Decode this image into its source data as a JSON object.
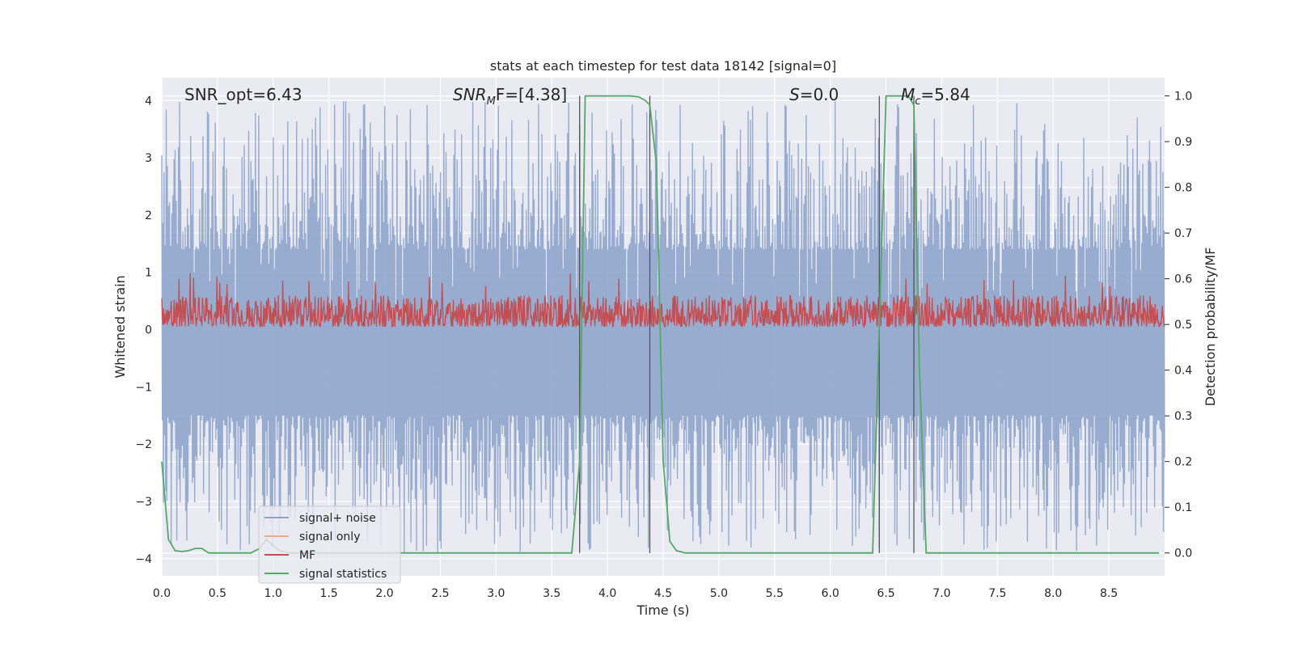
{
  "chart_data": {
    "type": "line",
    "title": "stats at each timestep for test data 18142 [signal=0]",
    "xlabel": "Time (s)",
    "ylabel_left": "Whitened strain",
    "ylabel_right": "Detection probability/MF",
    "xlim": [
      0.0,
      9.0
    ],
    "ylim_left": [
      -4.3,
      4.4
    ],
    "ylim_right": [
      -0.05,
      1.04
    ],
    "grid": true,
    "xticks": [
      0.0,
      0.5,
      1.0,
      1.5,
      2.0,
      2.5,
      3.0,
      3.5,
      4.0,
      4.5,
      5.0,
      5.5,
      6.0,
      6.5,
      7.0,
      7.5,
      8.0,
      8.5
    ],
    "xtick_labels": [
      "0.0",
      "0.5",
      "1.0",
      "1.5",
      "2.0",
      "2.5",
      "3.0",
      "3.5",
      "4.0",
      "4.5",
      "5.0",
      "5.5",
      "6.0",
      "6.5",
      "7.0",
      "7.5",
      "8.0",
      "8.5"
    ],
    "yticks_left": [
      4,
      3,
      2,
      1,
      0,
      -1,
      -2,
      -3,
      -4
    ],
    "ytick_labels_left": [
      "4",
      "3",
      "2",
      "1",
      "0",
      "−1",
      "−2",
      "−3",
      "−4"
    ],
    "yticks_right": [
      1.0,
      0.9,
      0.8,
      0.7,
      0.6,
      0.5,
      0.4,
      0.3,
      0.2,
      0.1,
      0.0
    ],
    "ytick_labels_right": [
      "1.0",
      "0.9",
      "0.8",
      "0.7",
      "0.6",
      "0.5",
      "0.4",
      "0.3",
      "0.2",
      "0.1",
      "0.0"
    ],
    "annotations": [
      {
        "text": "SNR_opt=6.43",
        "x": 0.2
      },
      {
        "text": "SNR_MF=[4.38]",
        "x": 2.6,
        "base": "SNR",
        "sub": "M",
        "tail": "F=[4.38]"
      },
      {
        "text": "S=0.0",
        "x": 5.6,
        "base": "S",
        "tail": "=0.0"
      },
      {
        "text": "M_c=5.84",
        "x": 6.6,
        "base": "M",
        "sub": "c",
        "tail": "=5.84"
      }
    ],
    "detection_markers": [
      3.75,
      4.38,
      6.44,
      6.75
    ],
    "series": [
      {
        "name": "signal+ noise",
        "color": "#8fa5cc",
        "axis": "left",
        "x_range": [
          0.0,
          9.0
        ],
        "n_points": 1800,
        "envelope_min": -3.9,
        "envelope_max": 4.0
      },
      {
        "name": "signal only",
        "color": "#eeaa90",
        "axis": "left",
        "values": []
      },
      {
        "name": "MF",
        "color": "#c44e52",
        "axis": "left",
        "x_range": [
          0.0,
          9.0
        ],
        "n_points": 1800,
        "envelope_min": 0.0,
        "envelope_max": 1.0
      },
      {
        "name": "signal statistics",
        "color": "#55a868",
        "axis": "right",
        "x": [
          0.0,
          0.06,
          0.12,
          0.18,
          0.24,
          0.3,
          0.36,
          0.42,
          0.5,
          0.6,
          0.7,
          0.8,
          0.88,
          0.94,
          1.0,
          1.06,
          1.15,
          1.3,
          1.5,
          1.8,
          2.2,
          2.8,
          3.3,
          3.68,
          3.75,
          3.8,
          3.9,
          4.0,
          4.1,
          4.2,
          4.28,
          4.34,
          4.38,
          4.44,
          4.5,
          4.56,
          4.62,
          4.7,
          4.8,
          5.2,
          6.0,
          6.38,
          6.44,
          6.5,
          6.6,
          6.7,
          6.75,
          6.8,
          6.86,
          7.2,
          8.0,
          8.95
        ],
        "y": [
          0.2,
          0.03,
          0.005,
          0.003,
          0.005,
          0.01,
          0.01,
          0.0,
          0.0,
          0.0,
          0.0,
          0.0,
          0.01,
          0.03,
          0.015,
          0.005,
          0.0,
          0.0,
          0.0,
          0.0,
          0.0,
          0.0,
          0.0,
          0.0,
          0.2,
          1.0,
          1.0,
          1.0,
          1.0,
          1.0,
          0.998,
          0.99,
          0.98,
          0.85,
          0.2,
          0.025,
          0.005,
          0.0,
          0.0,
          0.0,
          0.0,
          0.0,
          0.5,
          1.0,
          1.0,
          1.0,
          0.98,
          0.4,
          0.0,
          0.0,
          0.0,
          0.0
        ]
      }
    ],
    "legend": {
      "placement": "lower-left",
      "entries": [
        "signal+ noise",
        "signal only",
        "MF",
        "signal statistics"
      ]
    }
  }
}
